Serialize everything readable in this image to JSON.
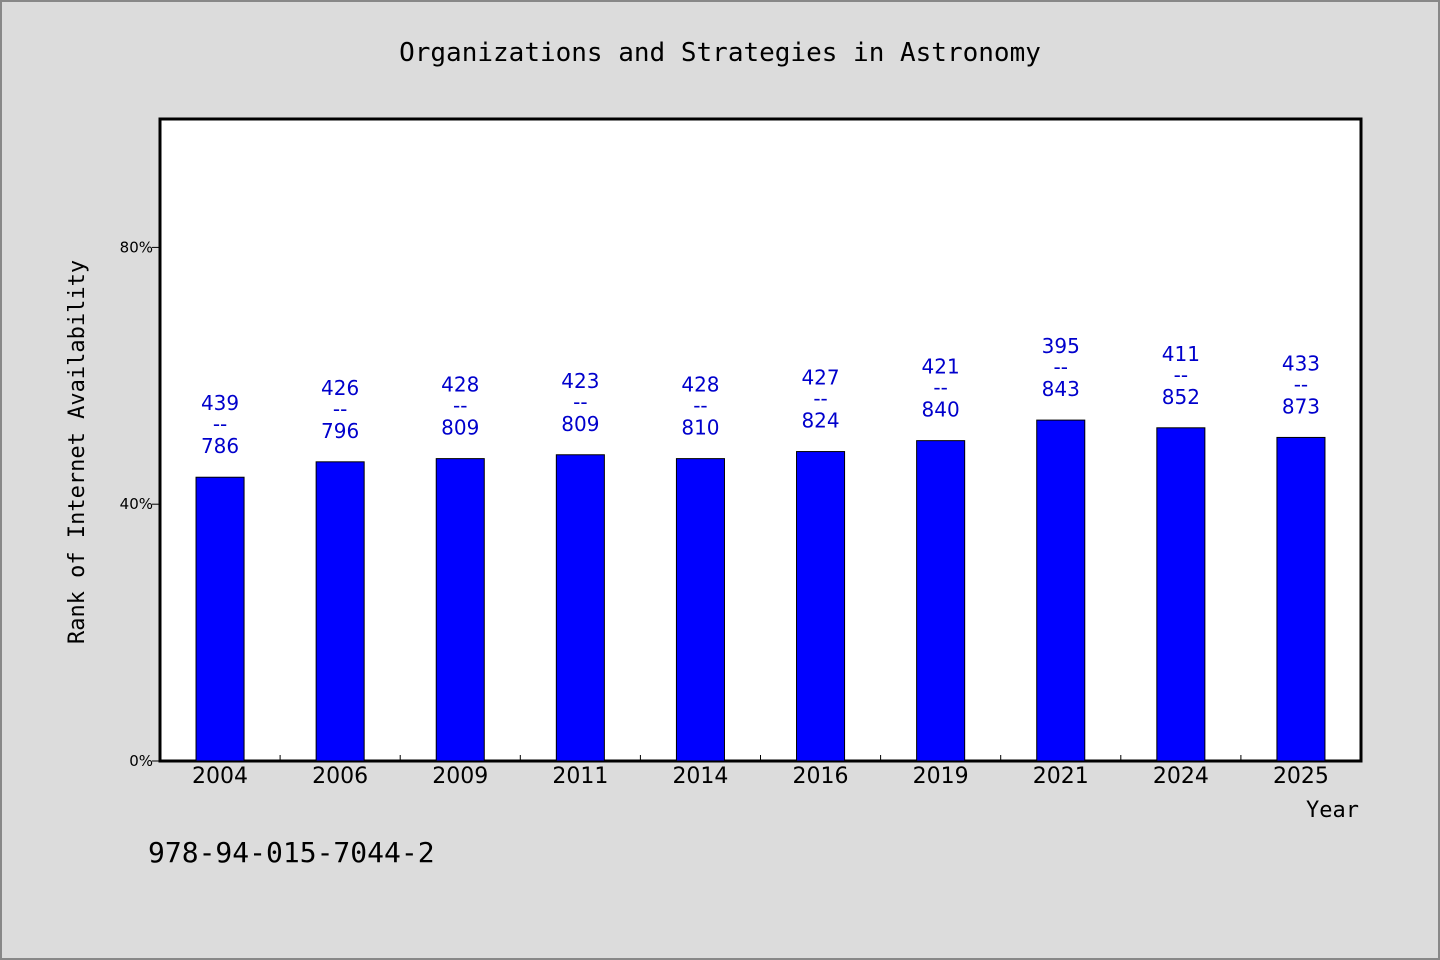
{
  "chart_data": {
    "type": "bar",
    "title": "Organizations and Strategies in Astronomy",
    "xlabel": "Year",
    "ylabel": "Rank of Internet Availability",
    "categories": [
      "2004",
      "2006",
      "2009",
      "2011",
      "2014",
      "2016",
      "2019",
      "2021",
      "2024",
      "2025"
    ],
    "values": [
      44.2,
      46.6,
      47.1,
      47.7,
      47.1,
      48.2,
      49.9,
      53.1,
      51.9,
      50.4
    ],
    "labels_top": [
      "439",
      "426",
      "428",
      "423",
      "428",
      "427",
      "421",
      "395",
      "411",
      "433"
    ],
    "labels_bottom": [
      "786",
      "796",
      "809",
      "809",
      "810",
      "824",
      "840",
      "843",
      "852",
      "873"
    ],
    "label_separator": "--",
    "ylim": [
      0,
      100
    ],
    "yticks": [
      0,
      40,
      80
    ],
    "ytick_labels": [
      "0%",
      "40%",
      "80%"
    ],
    "grid": false,
    "bar_color": "#0000ff",
    "label_color": "#0000cc",
    "plot_background": "#ffffff",
    "page_background": "#dcdcdc"
  },
  "footer": {
    "isbn": "978-94-015-7044-2"
  }
}
